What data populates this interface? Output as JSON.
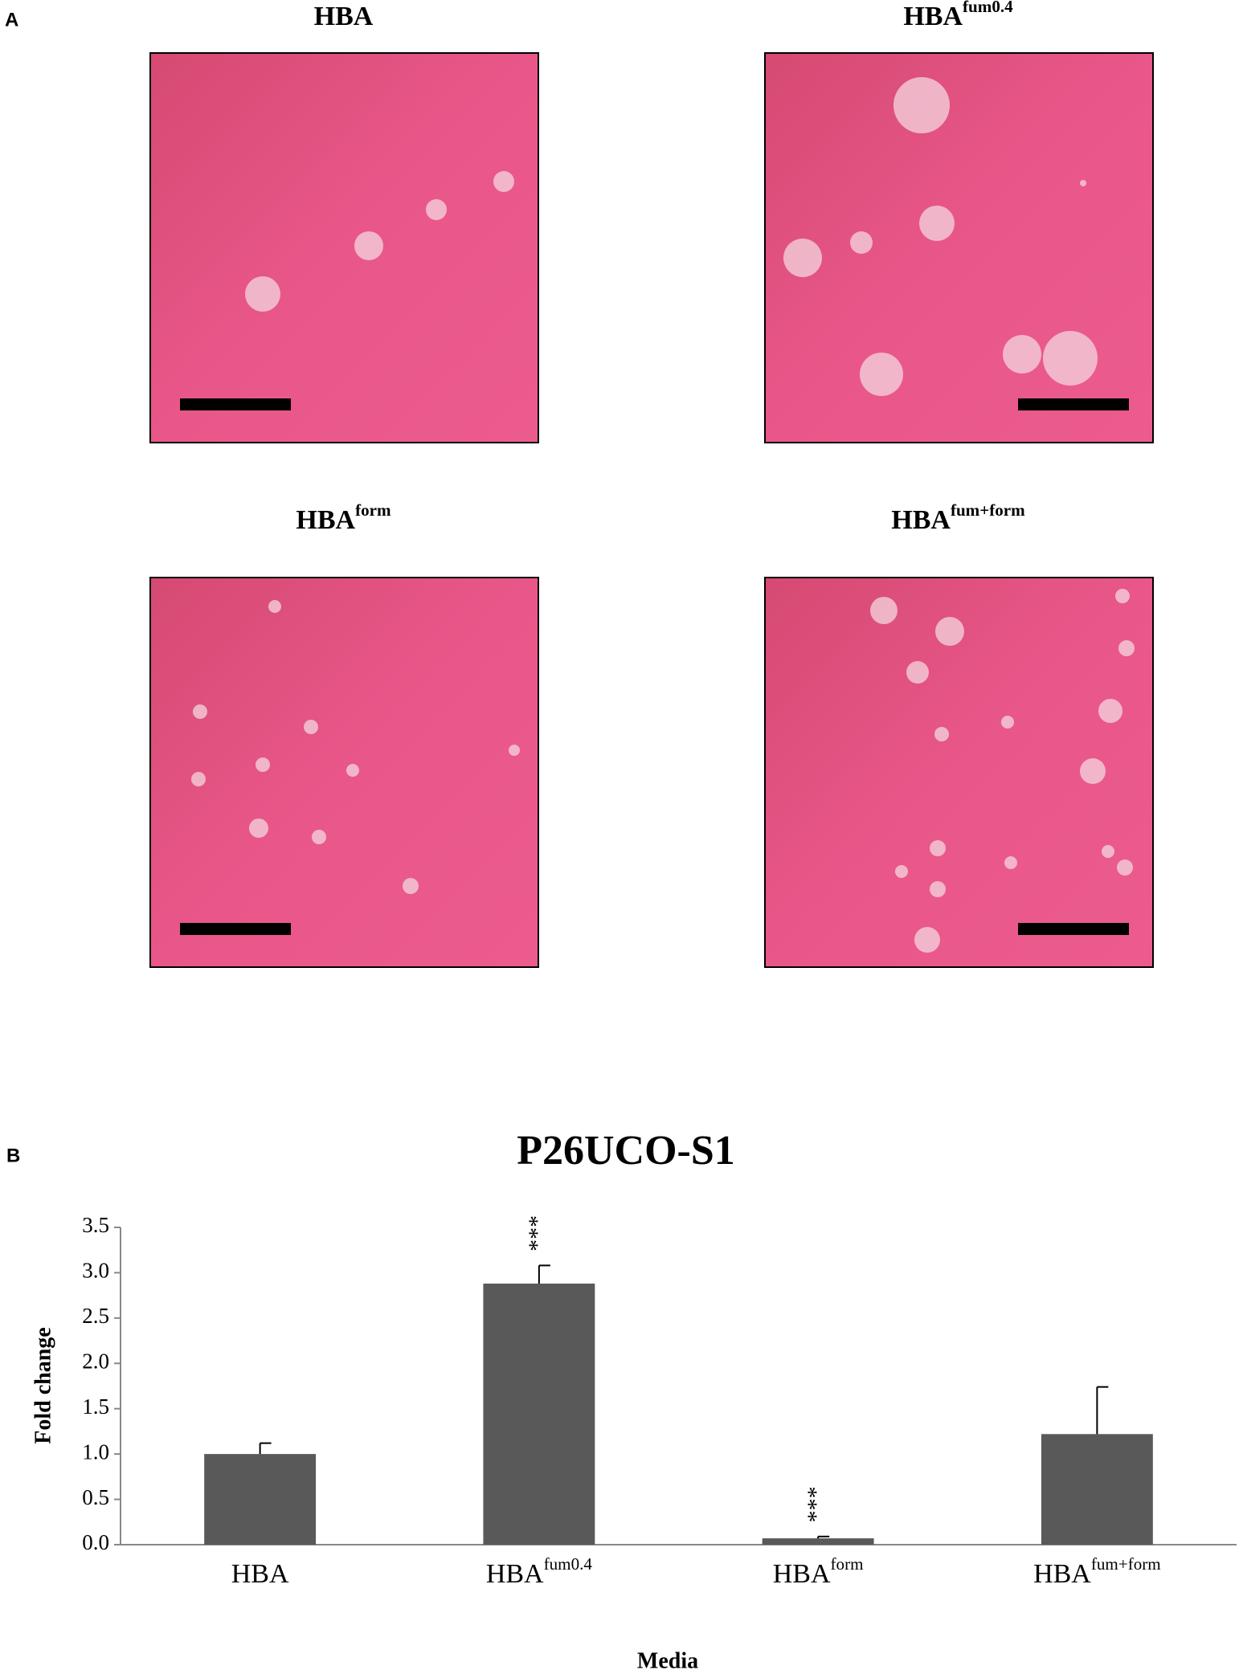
{
  "panel_a": {
    "label": "A",
    "images": [
      {
        "title": {
          "base": "HBA"
        }
      },
      {
        "title": {
          "base": "HBA",
          "sup": "fum0.4"
        }
      },
      {
        "title": {
          "base": "HBA",
          "sup": "form"
        }
      },
      {
        "title": {
          "base": "HBA",
          "sup": "fum+form"
        }
      }
    ]
  },
  "chart_data": {
    "type": "bar",
    "panel_label": "B",
    "title": "P26UCO-S1",
    "x_label": "Media",
    "y_label": "Fold change",
    "categories": [
      {
        "base": "HBA"
      },
      {
        "base": "HBA",
        "sup": "fum0.4"
      },
      {
        "base": "HBA",
        "sup": "form"
      },
      {
        "base": "HBA",
        "sup": "fum+form"
      }
    ],
    "values": [
      1.0,
      2.88,
      0.07,
      1.22
    ],
    "errors": [
      0.12,
      0.2,
      0.02,
      0.52
    ],
    "annotations": [
      null,
      "***",
      "***",
      null
    ],
    "color": "#595959",
    "ylim": [
      0,
      3.5
    ],
    "yticks": [
      {
        "value": 0,
        "label": "0.0"
      },
      {
        "value": 0.5,
        "label": "0.5"
      },
      {
        "value": 1,
        "label": "1.0"
      },
      {
        "value": 1.5,
        "label": "1.5"
      },
      {
        "value": 2,
        "label": "2.0"
      },
      {
        "value": 2.5,
        "label": "2.5"
      },
      {
        "value": 3,
        "label": "3.0"
      },
      {
        "value": 3.5,
        "label": "3.5"
      }
    ]
  }
}
